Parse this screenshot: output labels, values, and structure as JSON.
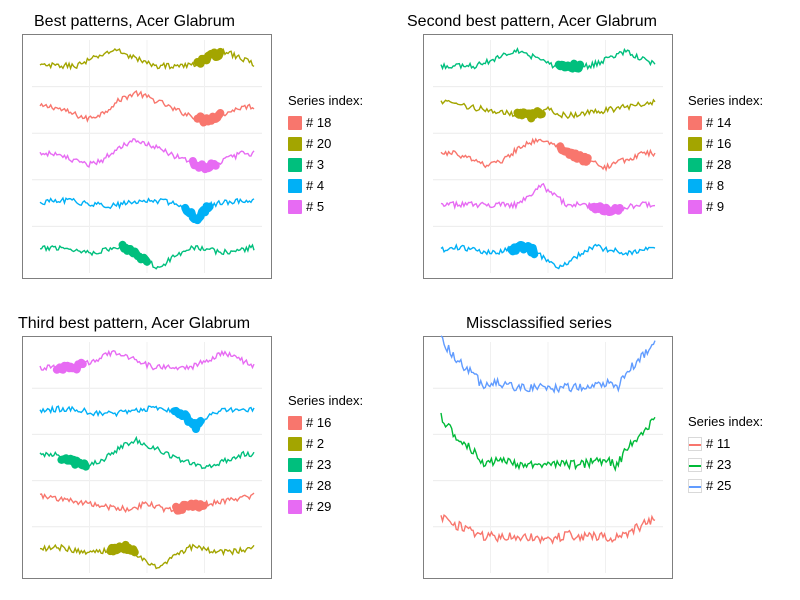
{
  "chart_data": [
    {
      "type": "line",
      "title": "Best patterns, Acer Glabrum",
      "legend_title": "Series index:",
      "legend_position": "right",
      "grid": true,
      "x_axis_labels": false,
      "y_axis_labels": false,
      "series": [
        {
          "name": "# 18",
          "color": "#F8766D",
          "shape": "heart-lobe",
          "level": 3,
          "highlight": [
            0.74,
            0.84
          ]
        },
        {
          "name": "# 20",
          "color": "#A3A500",
          "shape": "dual-peak",
          "level": 4,
          "highlight": [
            0.74,
            0.84
          ]
        },
        {
          "name": "# 3",
          "color": "#00BF7D",
          "shape": "center-valley",
          "level": 0,
          "highlight": [
            0.39,
            0.5
          ]
        },
        {
          "name": "# 4",
          "color": "#00B0F6",
          "shape": "noisy-flat",
          "level": 1,
          "highlight": [
            0.68,
            0.79
          ]
        },
        {
          "name": "# 5",
          "color": "#E76BF3",
          "shape": "heart-lobe",
          "level": 2,
          "highlight": [
            0.72,
            0.82
          ]
        }
      ]
    },
    {
      "type": "line",
      "title": "Second best pattern, Acer Glabrum",
      "legend_title": "Series index:",
      "legend_position": "right",
      "grid": true,
      "x_axis_labels": false,
      "y_axis_labels": false,
      "series": [
        {
          "name": "# 14",
          "color": "#F8766D",
          "shape": "heart-lobe",
          "level": 2,
          "highlight": [
            0.56,
            0.68
          ]
        },
        {
          "name": "# 16",
          "color": "#A3A500",
          "shape": "deep-v",
          "level": 3,
          "highlight": [
            0.36,
            0.47
          ]
        },
        {
          "name": "# 28",
          "color": "#00BF7D",
          "shape": "dual-peak",
          "level": 4,
          "highlight": [
            0.55,
            0.65
          ]
        },
        {
          "name": "# 8",
          "color": "#00B0F6",
          "shape": "center-valley",
          "level": 0,
          "highlight": [
            0.33,
            0.43
          ]
        },
        {
          "name": "# 9",
          "color": "#E76BF3",
          "shape": "noisy-peak",
          "level": 1,
          "highlight": [
            0.71,
            0.83
          ]
        }
      ]
    },
    {
      "type": "line",
      "title": "Third best pattern, Acer Glabrum",
      "legend_title": "Series index:",
      "legend_position": "right",
      "grid": true,
      "x_axis_labels": false,
      "y_axis_labels": false,
      "series": [
        {
          "name": "# 16",
          "color": "#F8766D",
          "shape": "deep-v",
          "level": 1,
          "highlight": [
            0.64,
            0.76
          ]
        },
        {
          "name": "# 2",
          "color": "#A3A500",
          "shape": "center-valley",
          "level": 0,
          "highlight": [
            0.33,
            0.44
          ]
        },
        {
          "name": "# 23",
          "color": "#00BF7D",
          "shape": "heart-lobe",
          "level": 2,
          "highlight": [
            0.1,
            0.21
          ]
        },
        {
          "name": "# 28",
          "color": "#00B0F6",
          "shape": "noisy-flat",
          "level": 3,
          "highlight": [
            0.63,
            0.75
          ]
        },
        {
          "name": "# 29",
          "color": "#E76BF3",
          "shape": "dual-peak",
          "level": 4,
          "highlight": [
            0.08,
            0.2
          ]
        }
      ]
    },
    {
      "type": "line",
      "title": "Missclassified series",
      "legend_title": "Series index:",
      "legend_position": "right",
      "grid": true,
      "x_axis_labels": false,
      "y_axis_labels": false,
      "series": [
        {
          "name": "# 11",
          "color": "#F8766D",
          "shape": "wide-w",
          "level": 0
        },
        {
          "name": "# 23",
          "color": "#00BA38",
          "shape": "bowl",
          "level": 1
        },
        {
          "name": "# 25",
          "color": "#619CFF",
          "shape": "bowl",
          "level": 2
        }
      ]
    }
  ]
}
